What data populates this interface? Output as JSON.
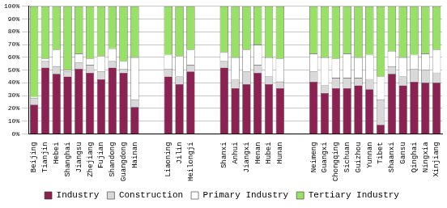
{
  "chart_data": {
    "type": "bar",
    "stacked": true,
    "grid": true,
    "legend": "bottom",
    "categories": [
      "Beijing",
      "Tianjin",
      "Hebei",
      "Shanghai",
      "Jiangsu",
      "Zhejiang",
      "Fujian",
      "Shandong",
      "Guangdong",
      "Hainan",
      null,
      null,
      "Liaoning",
      "Jilin",
      "Heilongji",
      null,
      null,
      "Shanxi",
      "Anhui",
      "Jiangxi",
      "Henan",
      "Hubei",
      "Hunan",
      null,
      null,
      "Neimeng",
      "Guangxi",
      "Chongqing",
      "Sichuan",
      "Guizhou",
      "Yunnan",
      "Tibet",
      "Shaanxi",
      "Gansu",
      "Qinghai",
      "Ningxia",
      "Xinjiang"
    ],
    "series": [
      {
        "name": "Industry",
        "color": "#8b2252",
        "values": [
          23,
          52,
          47,
          45,
          51,
          48,
          43,
          52,
          48,
          21,
          null,
          null,
          45,
          39,
          49,
          null,
          null,
          52,
          36,
          39,
          48,
          39,
          36,
          null,
          null,
          41,
          32,
          36,
          36,
          38,
          35,
          7,
          47,
          38,
          41,
          40,
          40
        ]
      },
      {
        "name": "Construction",
        "color": "#d9d9d9",
        "values": [
          5,
          5,
          6,
          4,
          5,
          6,
          6,
          5,
          3,
          6,
          null,
          null,
          6,
          6,
          5,
          null,
          null,
          5,
          7,
          10,
          6,
          6,
          5,
          null,
          null,
          8,
          6,
          8,
          8,
          6,
          8,
          20,
          6,
          7,
          10,
          10,
          8
        ]
      },
      {
        "name": "Primary Industry",
        "color": "#ffffff",
        "values": [
          1,
          2,
          13,
          1,
          7,
          5,
          12,
          10,
          6,
          33,
          null,
          null,
          11,
          16,
          12,
          null,
          null,
          7,
          17,
          17,
          16,
          15,
          18,
          null,
          null,
          14,
          22,
          15,
          19,
          16,
          19,
          18,
          12,
          15,
          11,
          13,
          18
        ]
      },
      {
        "name": "Tertiary Industry",
        "color": "#99e066",
        "values": [
          71,
          41,
          34,
          50,
          37,
          41,
          39,
          33,
          43,
          40,
          null,
          null,
          38,
          39,
          34,
          null,
          null,
          36,
          40,
          34,
          30,
          40,
          41,
          null,
          null,
          37,
          40,
          41,
          37,
          40,
          38,
          55,
          35,
          40,
          38,
          37,
          34
        ]
      }
    ],
    "ylim": [
      0,
      100
    ],
    "yticks": [
      {
        "value": 0,
        "label": "0%"
      },
      {
        "value": 10,
        "label": "10%"
      },
      {
        "value": 20,
        "label": "20%"
      },
      {
        "value": 30,
        "label": "30%"
      },
      {
        "value": 40,
        "label": "40%"
      },
      {
        "value": 50,
        "label": "50%"
      },
      {
        "value": 60,
        "label": "60%"
      },
      {
        "value": 70,
        "label": "70%"
      },
      {
        "value": 80,
        "label": "80%"
      },
      {
        "value": 90,
        "label": "90%"
      },
      {
        "value": 100,
        "label": "100%"
      }
    ]
  }
}
